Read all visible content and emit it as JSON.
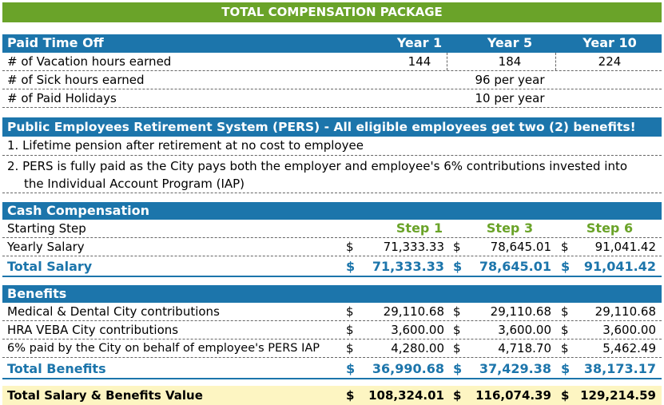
{
  "title": "TOTAL COMPENSATION PACKAGE",
  "pto": {
    "header": "Paid Time Off",
    "years": [
      "Year 1",
      "Year 5",
      "Year 10"
    ],
    "vacation_label": "# of Vacation hours earned",
    "vacation_values": [
      "144",
      "184",
      "224"
    ],
    "sick_label": "# of Sick hours earned",
    "sick_value": "96 per year",
    "holidays_label": "# of Paid Holidays",
    "holidays_value": "10 per year"
  },
  "pers": {
    "header": "Public Employees Retirement System (PERS) - All eligible employees get two (2) benefits!",
    "item1": "1. Lifetime pension after retirement at no cost to employee",
    "item2_line1": "2.  PERS is fully paid as the City pays both the employer and employee's 6% contributions invested into",
    "item2_line2": "the Individual Account Program (IAP)"
  },
  "cash": {
    "header": "Cash Compensation",
    "starting_label": "Starting Step",
    "steps": [
      "Step 1",
      "Step 3",
      "Step 6"
    ],
    "yearly_label": "Yearly Salary",
    "yearly_values": [
      "71,333.33",
      "78,645.01",
      "91,041.42"
    ],
    "total_label": "Total Salary",
    "total_values": [
      "71,333.33",
      "78,645.01",
      "91,041.42"
    ],
    "currency": "$"
  },
  "benefits": {
    "header": "Benefits",
    "rows": [
      {
        "label": "Medical & Dental City contributions",
        "values": [
          "29,110.68",
          "29,110.68",
          "29,110.68"
        ]
      },
      {
        "label": "HRA VEBA City contributions",
        "values": [
          "3,600.00",
          "3,600.00",
          "3,600.00"
        ]
      },
      {
        "label": "6% paid by the City on behalf of employee's PERS IAP",
        "values": [
          "4,280.00",
          "4,718.70",
          "5,462.49"
        ]
      }
    ],
    "total_label": "Total Benefits",
    "total_values": [
      "36,990.68",
      "37,429.38",
      "38,173.17"
    ]
  },
  "grand": {
    "label": "Total Salary & Benefits Value",
    "values": [
      "108,324.01",
      "116,074.39",
      "129,214.59"
    ]
  },
  "colors": {
    "green": "#6aa329",
    "blue": "#1c75ab",
    "gold": "#fdf5c2"
  }
}
